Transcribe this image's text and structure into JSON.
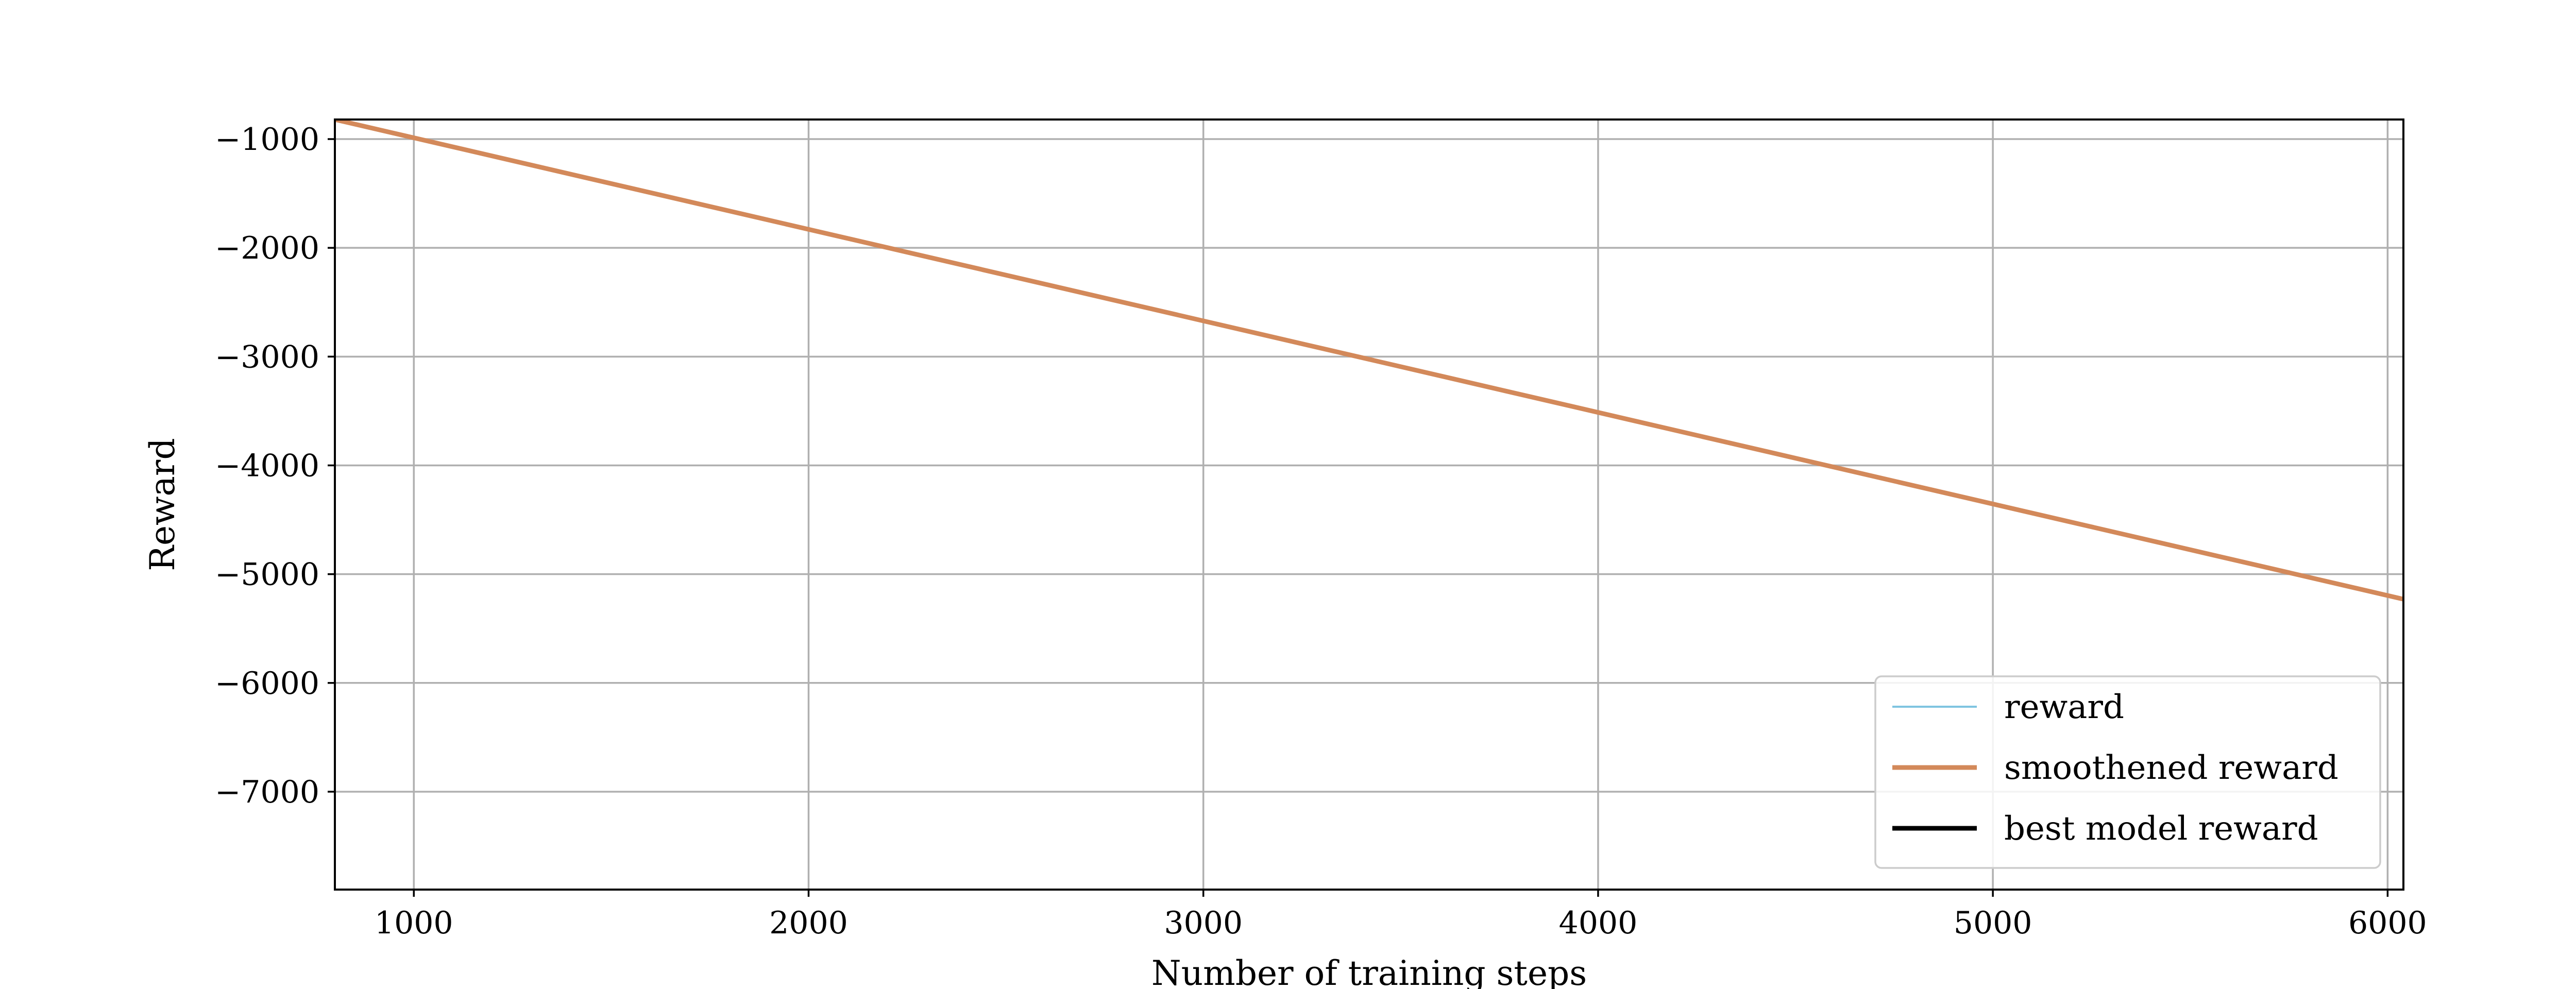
{
  "chart_data": {
    "type": "line",
    "xlabel": "Number of training steps",
    "ylabel": "Reward",
    "xlim": [
      800,
      6040
    ],
    "ylim": [
      -7900,
      -820
    ],
    "xticks": [
      1000,
      2000,
      3000,
      4000,
      5000,
      6000
    ],
    "xtick_labels": [
      "1000",
      "2000",
      "3000",
      "4000",
      "5000",
      "6000"
    ],
    "yticks": [
      -1000,
      -2000,
      -3000,
      -4000,
      -5000,
      -6000,
      -7000
    ],
    "ytick_labels": [
      "−1000",
      "−2000",
      "−3000",
      "−4000",
      "−5000",
      "−6000",
      "−7000"
    ],
    "grid": true,
    "legend_position": "lower-right",
    "series": [
      {
        "name": "reward",
        "color": "#7fc4e0",
        "x": [],
        "y": []
      },
      {
        "name": "smoothened reward",
        "color": "#d3895a",
        "x": [
          800,
          6040
        ],
        "y": [
          -820,
          -5230
        ]
      },
      {
        "name": "best model reward",
        "color": "#000000",
        "x": [],
        "y": []
      }
    ]
  }
}
